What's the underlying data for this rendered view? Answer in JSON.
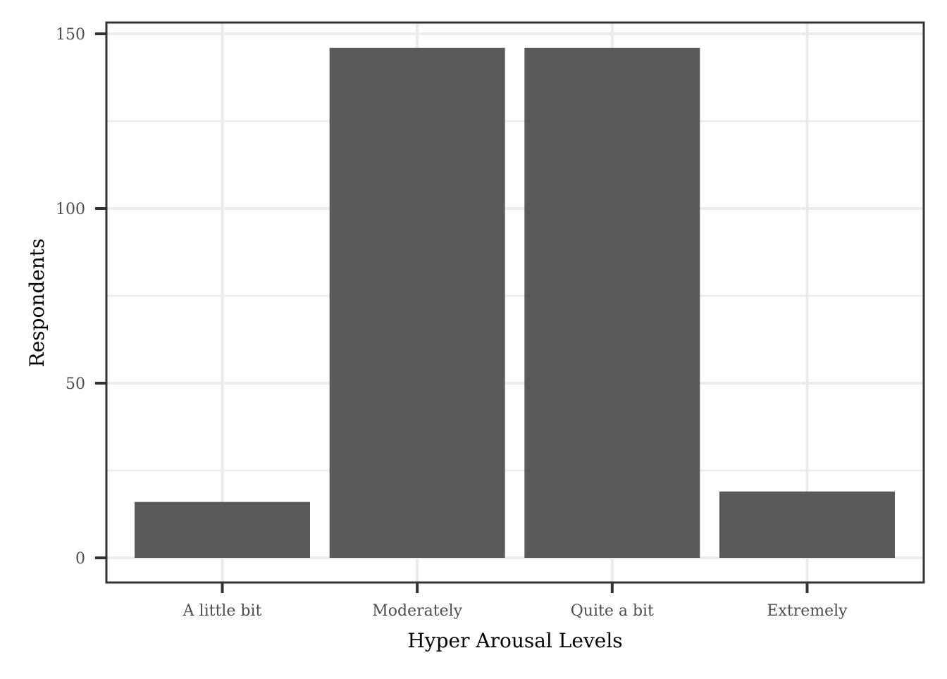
{
  "chart_data": {
    "type": "bar",
    "categories": [
      "A little bit",
      "Moderately",
      "Quite a bit",
      "Extremely"
    ],
    "values": [
      16,
      146,
      146,
      19
    ],
    "xlabel": "Hyper Arousal Levels",
    "ylabel": "Respondents",
    "ylim": [
      0,
      150
    ],
    "yticks": [
      0,
      50,
      100,
      150
    ],
    "yticks_labels": [
      "0",
      "50",
      "100",
      "150"
    ],
    "grid": true,
    "legend": "none",
    "colors": {
      "bar": "#595959",
      "grid": "#ebebeb",
      "panel_border": "#333333",
      "tick_label": "#4d4d4d",
      "axis_title": "#000000"
    }
  }
}
